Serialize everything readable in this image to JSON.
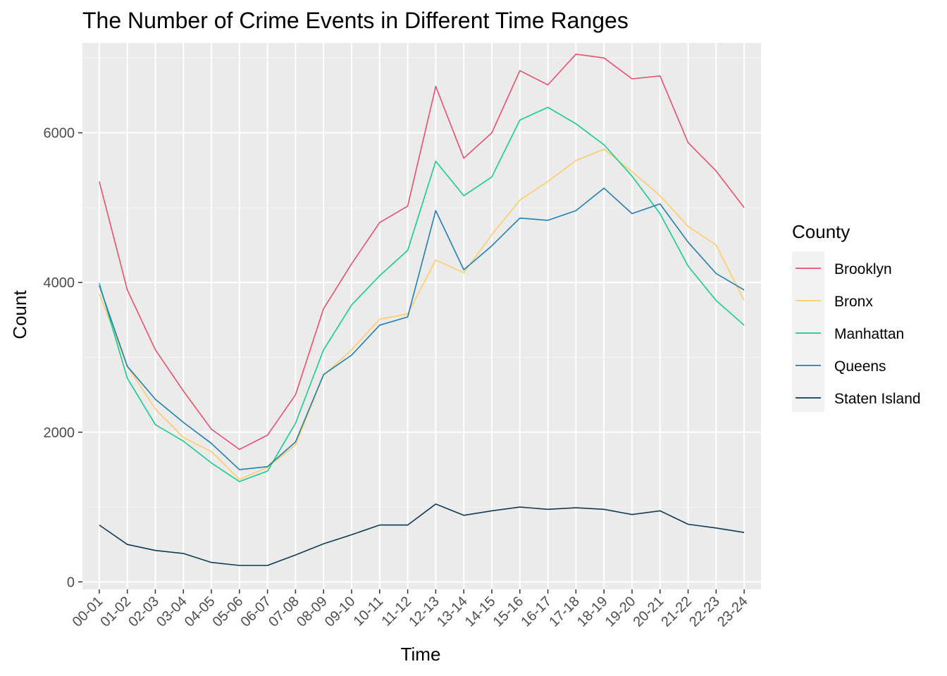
{
  "chart_data": {
    "type": "line",
    "title": "The Number of Crime Events in Different Time Ranges",
    "xlabel": "Time",
    "ylabel": "Count",
    "ylim": [
      -100,
      7200
    ],
    "yticks": [
      0,
      2000,
      4000,
      6000
    ],
    "yticklabels": [
      "0",
      "2000",
      "4000",
      "6000"
    ],
    "categories": [
      "00-01",
      "01-02",
      "02-03",
      "03-04",
      "04-05",
      "05-06",
      "06-07",
      "07-08",
      "08-09",
      "09-10",
      "10-11",
      "11-12",
      "12-13",
      "13-14",
      "14-15",
      "15-16",
      "16-17",
      "17-18",
      "18-19",
      "19-20",
      "20-21",
      "21-22",
      "22-23",
      "23-24"
    ],
    "grid": true,
    "legend": {
      "title": "County",
      "position": "right"
    },
    "series": [
      {
        "name": "Brooklyn",
        "color": "#E8506E",
        "values": [
          5350,
          3900,
          3100,
          2550,
          2040,
          1770,
          1960,
          2500,
          3650,
          4250,
          4800,
          5020,
          6620,
          5660,
          6000,
          6830,
          6640,
          7050,
          7000,
          6720,
          6760,
          5870,
          5490,
          5000
        ]
      },
      {
        "name": "Bronx",
        "color": "#FFCC66",
        "values": [
          3850,
          2880,
          2310,
          1930,
          1740,
          1370,
          1530,
          1830,
          2760,
          3100,
          3510,
          3580,
          4300,
          4130,
          4640,
          5100,
          5350,
          5630,
          5780,
          5480,
          5160,
          4750,
          4500,
          3760
        ]
      },
      {
        "name": "Manhattan",
        "color": "#16CC8E",
        "values": [
          3990,
          2720,
          2100,
          1880,
          1590,
          1340,
          1480,
          2120,
          3100,
          3700,
          4090,
          4430,
          5620,
          5160,
          5410,
          6170,
          6340,
          6120,
          5840,
          5420,
          4920,
          4220,
          3760,
          3430
        ]
      },
      {
        "name": "Queens",
        "color": "#1F80B0",
        "values": [
          3960,
          2880,
          2440,
          2130,
          1850,
          1500,
          1540,
          1870,
          2770,
          3030,
          3430,
          3540,
          4960,
          4170,
          4490,
          4860,
          4830,
          4960,
          5260,
          4920,
          5050,
          4540,
          4120,
          3900
        ]
      },
      {
        "name": "Staten Island",
        "color": "#0E3B54",
        "values": [
          760,
          500,
          420,
          380,
          260,
          220,
          220,
          360,
          510,
          630,
          760,
          760,
          1040,
          890,
          950,
          1000,
          970,
          990,
          970,
          900,
          950,
          770,
          720,
          660
        ]
      }
    ]
  }
}
